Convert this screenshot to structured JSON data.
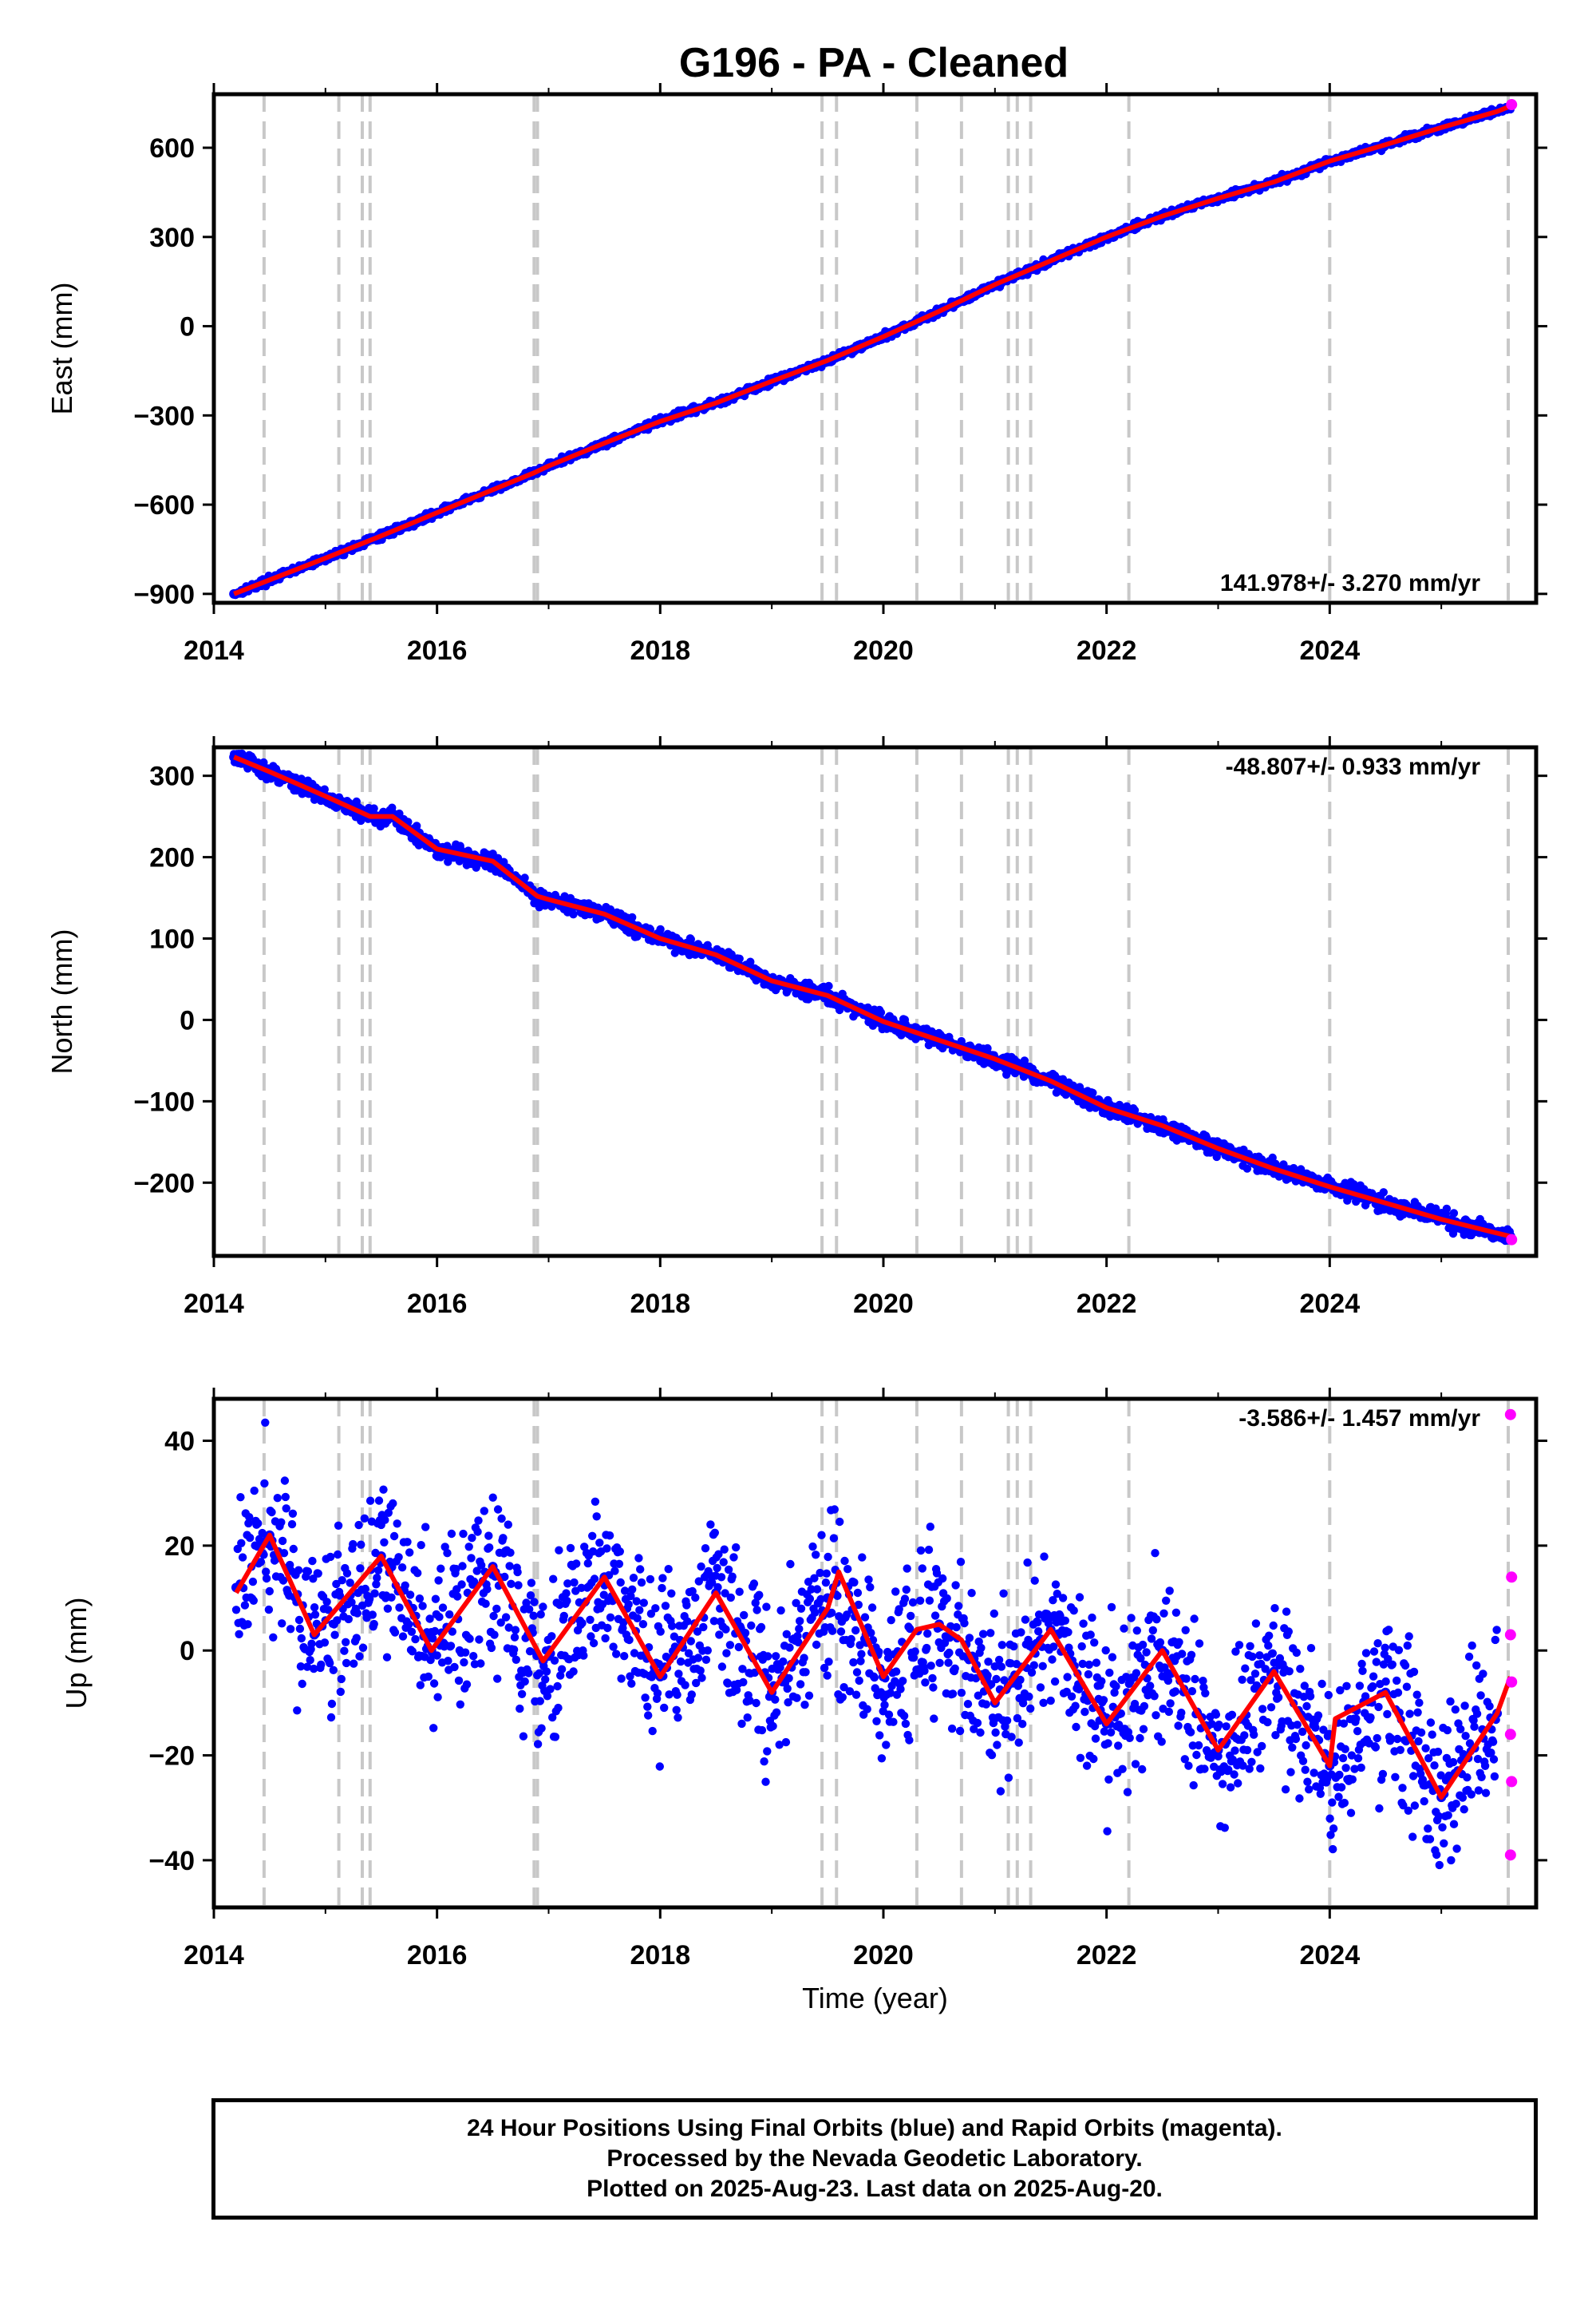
{
  "title": "G196  - PA - Cleaned",
  "colors": {
    "final": "#0000ff",
    "rapid": "#ff00ff",
    "model": "#ff0000",
    "break_lines": "#c8c8c8",
    "frame": "#000000"
  },
  "chart_data": [
    {
      "type": "scatter",
      "ylabel": "East (mm)",
      "xlabel": "",
      "rate_label": "141.978+/- 3.270 mm/yr",
      "xlim": [
        2014.0,
        2025.85
      ],
      "ylim": [
        -930,
        780
      ],
      "x_ticks": [
        "2014",
        "2016",
        "2018",
        "2020",
        "2022",
        "2024"
      ],
      "y_ticks": [
        "600",
        "300",
        "0",
        "−300",
        "−600",
        "−900"
      ],
      "y_tick_values": [
        600,
        300,
        0,
        -300,
        -600,
        -900
      ],
      "series": [
        {
          "kind": "final",
          "x": [
            2014.18,
            2014.5,
            2015.0,
            2015.5,
            2016.0,
            2016.5,
            2016.87,
            2017.0,
            2017.5,
            2018.0,
            2018.5,
            2019.0,
            2019.5,
            2020.0,
            2020.5,
            2021.0,
            2021.5,
            2022.0,
            2022.5,
            2023.0,
            2023.5,
            2024.0,
            2024.5,
            2025.0,
            2025.5,
            2025.62
          ],
          "y": [
            -900,
            -853,
            -780,
            -705,
            -627,
            -550,
            -493,
            -470,
            -393,
            -320,
            -258,
            -185,
            -115,
            -35,
            50,
            140,
            220,
            300,
            370,
            430,
            485,
            555,
            610,
            668,
            722,
            740
          ]
        },
        {
          "kind": "rapid",
          "x": [
            2025.63
          ],
          "y": [
            745
          ]
        }
      ]
    },
    {
      "type": "scatter",
      "ylabel": "North (mm)",
      "xlabel": "",
      "rate_label": "-48.807+/- 0.933 mm/yr",
      "xlim": [
        2014.0,
        2025.85
      ],
      "ylim": [
        -290,
        335
      ],
      "x_ticks": [
        "2014",
        "2016",
        "2018",
        "2020",
        "2022",
        "2024"
      ],
      "y_ticks": [
        "300",
        "200",
        "100",
        "0",
        "−100",
        "−200"
      ],
      "y_tick_values": [
        300,
        200,
        100,
        0,
        -100,
        -200
      ],
      "series": [
        {
          "kind": "final",
          "x": [
            2014.18,
            2014.5,
            2015.0,
            2015.4,
            2015.6,
            2016.0,
            2016.5,
            2016.9,
            2017.0,
            2017.5,
            2018.0,
            2018.5,
            2019.0,
            2019.5,
            2020.0,
            2020.5,
            2021.0,
            2021.5,
            2022.0,
            2022.5,
            2023.0,
            2023.5,
            2024.0,
            2024.5,
            2025.0,
            2025.5,
            2025.62
          ],
          "y": [
            323,
            305,
            275,
            250,
            250,
            210,
            195,
            152,
            148,
            130,
            100,
            80,
            48,
            30,
            -2,
            -25,
            -48,
            -75,
            -108,
            -130,
            -158,
            -183,
            -205,
            -225,
            -245,
            -262,
            -266
          ]
        },
        {
          "kind": "rapid",
          "x": [
            2025.63
          ],
          "y": [
            -270
          ]
        }
      ]
    },
    {
      "type": "scatter",
      "ylabel": "Up (mm)",
      "xlabel": "Time (year)",
      "rate_label": "-3.586+/- 1.457 mm/yr",
      "xlim": [
        2014.0,
        2025.85
      ],
      "ylim": [
        -49,
        48
      ],
      "x_ticks": [
        "2014",
        "2016",
        "2018",
        "2020",
        "2022",
        "2024"
      ],
      "y_ticks": [
        "40",
        "20",
        "0",
        "−20",
        "−40"
      ],
      "y_tick_values": [
        40,
        20,
        0,
        -20,
        -40
      ],
      "series": [
        {
          "kind": "final",
          "x": [
            2014.2,
            2014.5,
            2014.9,
            2015.5,
            2015.95,
            2016.5,
            2016.95,
            2017.5,
            2018.0,
            2018.5,
            2019.0,
            2019.5,
            2020.0,
            2020.5,
            2021.0,
            2021.5,
            2022.0,
            2022.5,
            2023.0,
            2023.5,
            2024.0,
            2024.5,
            2025.0,
            2025.5
          ],
          "y": [
            12,
            22,
            3,
            18,
            0,
            16,
            -2,
            14,
            -5,
            11,
            -8,
            10,
            -5,
            5,
            -10,
            4,
            -14,
            0,
            -19,
            -4,
            -22,
            -8,
            -28,
            -12
          ]
        },
        {
          "kind": "rapid",
          "x": [
            2025.62,
            2025.63,
            2025.62,
            2025.63,
            2025.62,
            2025.63,
            2025.62
          ],
          "y": [
            45,
            14,
            3,
            -6,
            -16,
            -25,
            -39
          ]
        }
      ],
      "model": {
        "x": [
          2014.2,
          2014.5,
          2014.9,
          2015.5,
          2015.95,
          2016.5,
          2016.95,
          2017.5,
          2018.0,
          2018.5,
          2019.0,
          2019.5,
          2019.6,
          2020.0,
          2020.3,
          2020.5,
          2020.7,
          2021.0,
          2021.5,
          2022.0,
          2022.5,
          2023.0,
          2023.5,
          2024.0,
          2024.05,
          2024.5,
          2025.0,
          2025.5,
          2025.62
        ],
        "y": [
          11,
          22,
          3,
          18,
          0,
          16,
          -2,
          14,
          -5,
          11,
          -8,
          8,
          15,
          -5,
          4,
          5,
          2,
          -10,
          4,
          -14,
          0,
          -19,
          -4,
          -22,
          -13,
          -8,
          -28,
          -12,
          -5
        ]
      }
    }
  ],
  "break_years": [
    2014.45,
    2015.12,
    2015.33,
    2015.4,
    2016.87,
    2016.9,
    2019.45,
    2019.58,
    2020.3,
    2020.7,
    2021.12,
    2021.2,
    2021.32,
    2022.2,
    2024.0,
    2025.6
  ],
  "footer": {
    "line1": "24 Hour Positions Using Final Orbits (blue) and Rapid Orbits (magenta).",
    "line2": "Processed by the Nevada Geodetic Laboratory.",
    "line3": "Plotted on 2025-Aug-23. Last data on 2025-Aug-20."
  }
}
